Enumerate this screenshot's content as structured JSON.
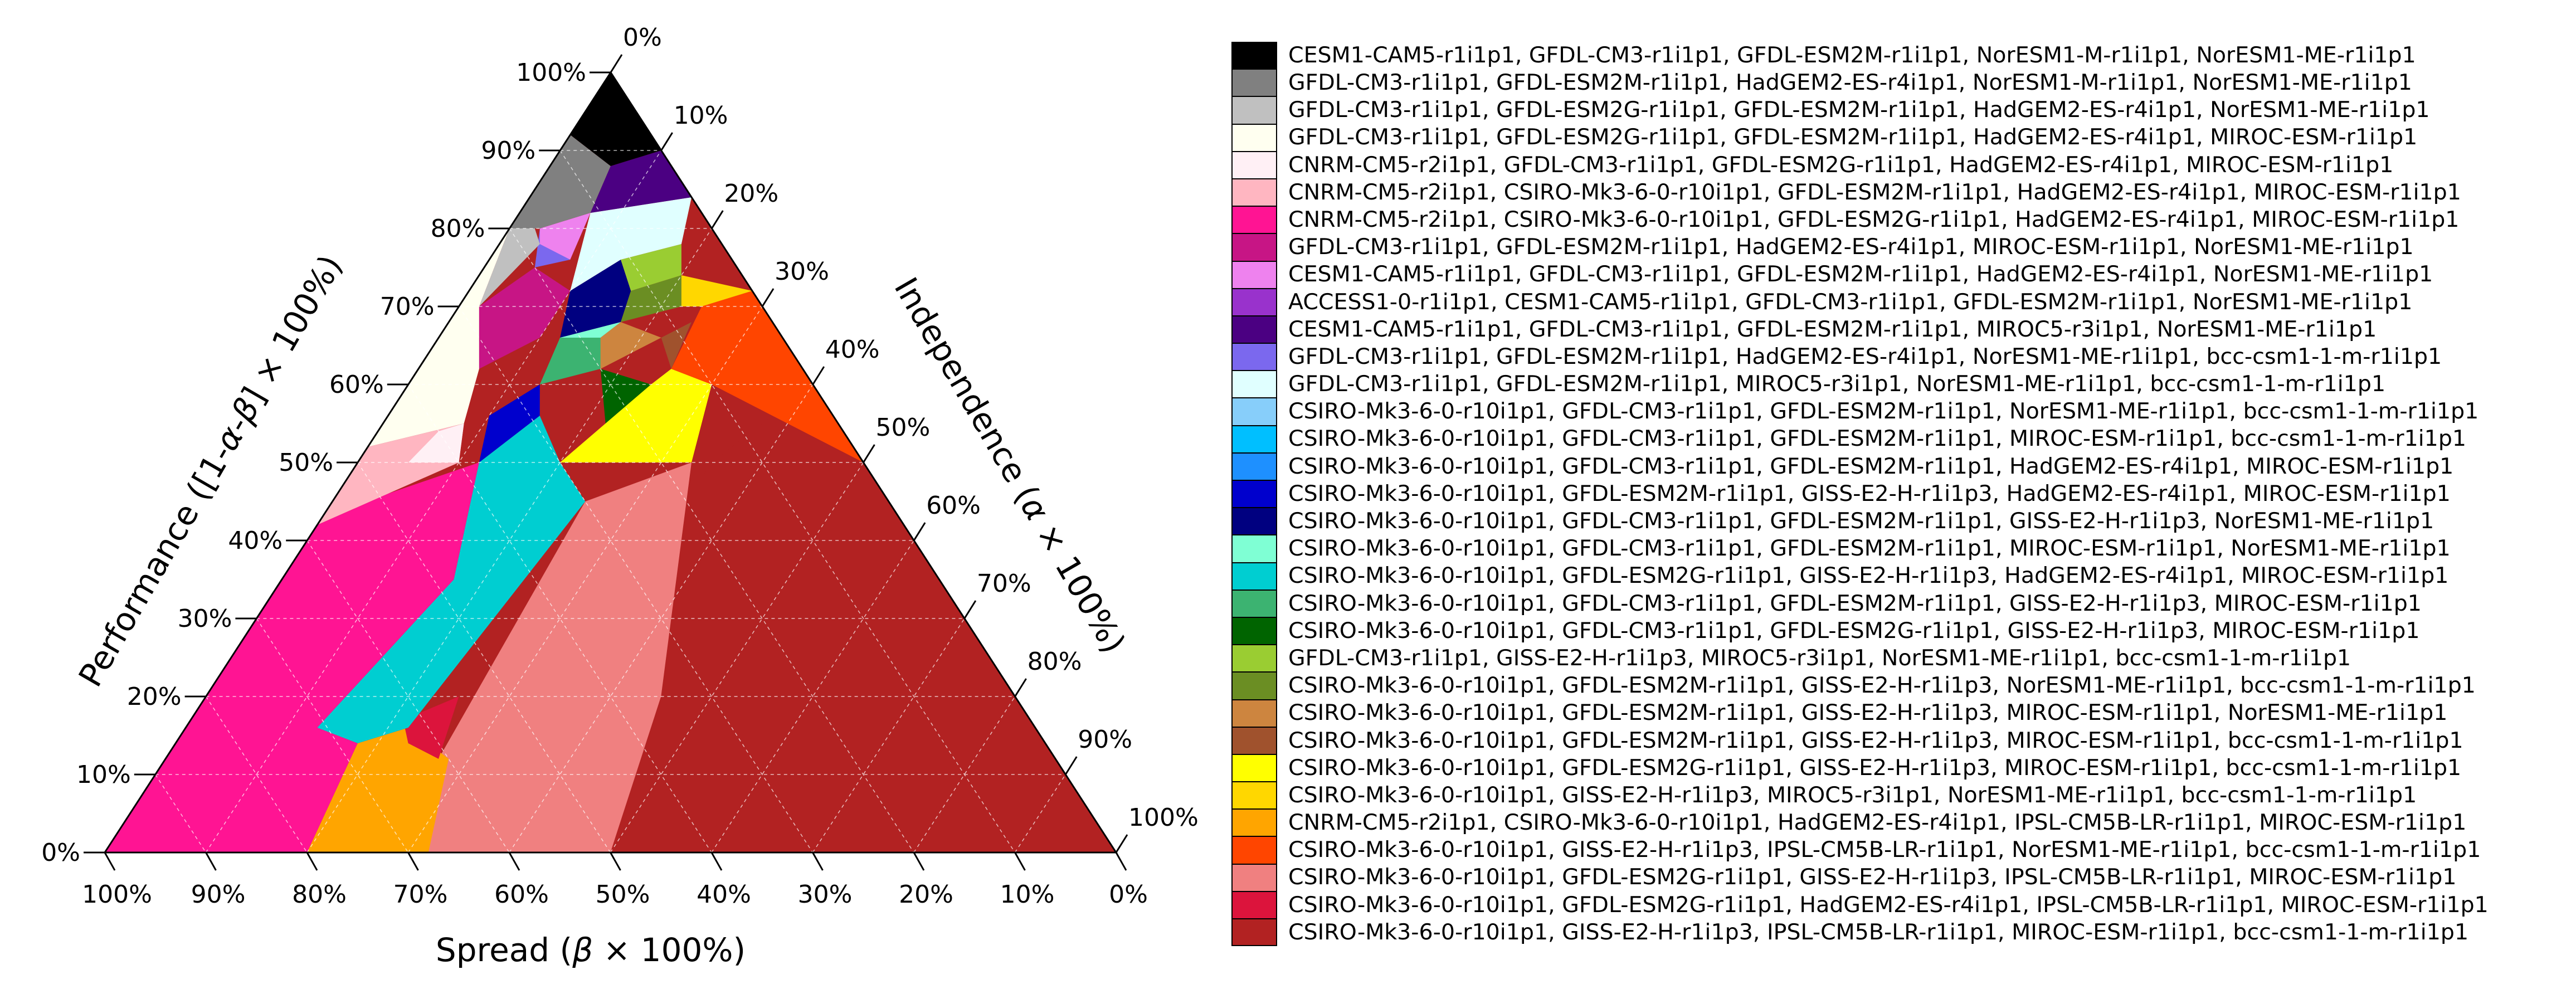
{
  "chart_data": {
    "type": "ternary-region-map",
    "axes": {
      "bottom": {
        "label_parts": [
          "Spread  (",
          "β",
          " × 100%)"
        ],
        "ticks": [
          "100%",
          "90%",
          "80%",
          "70%",
          "60%",
          "50%",
          "40%",
          "30%",
          "20%",
          "10%",
          "0%"
        ]
      },
      "left": {
        "label_parts": [
          "Performance ([1-",
          "α",
          "-",
          "β",
          "] × 100%)"
        ],
        "ticks": [
          "0%",
          "10%",
          "20%",
          "30%",
          "40%",
          "50%",
          "60%",
          "70%",
          "80%",
          "90%",
          "100%"
        ]
      },
      "right": {
        "label_parts": [
          "Independence (",
          "α",
          " × 100%)"
        ],
        "ticks": [
          "0%",
          "10%",
          "20%",
          "30%",
          "40%",
          "50%",
          "60%",
          "70%",
          "80%",
          "90%",
          "100%"
        ]
      }
    },
    "grid": true,
    "legend_position": "right",
    "regions": [
      {
        "idx": 0,
        "poly": [
          [
            0.91,
            0.06
          ],
          [
            0.97,
            0.0
          ],
          [
            1.0,
            0.0
          ],
          [
            0.9,
            0.1
          ],
          [
            0.84,
            0.1
          ],
          [
            0.87,
            0.06
          ]
        ]
      },
      {
        "idx": 1,
        "poly": [
          [
            0.87,
            0.06
          ],
          [
            0.84,
            0.1
          ],
          [
            0.8,
            0.1
          ],
          [
            0.77,
            0.08
          ],
          [
            0.83,
            0.02
          ],
          [
            0.88,
            0.02
          ]
        ]
      },
      {
        "idx": 2,
        "poly": [
          [
            0.82,
            0.02
          ],
          [
            0.77,
            0.08
          ],
          [
            0.76,
            0.07
          ],
          [
            0.79,
            0.02
          ]
        ]
      },
      {
        "idx": 3,
        "poly": [
          [
            0.82,
            0.01
          ],
          [
            0.79,
            0.02
          ],
          [
            0.75,
            0.02
          ],
          [
            0.7,
            0.06
          ],
          [
            0.56,
            0.06
          ],
          [
            0.48,
            0.1
          ],
          [
            0.47,
            0.13
          ],
          [
            0.79,
            0.0
          ]
        ]
      },
      {
        "idx": 4,
        "poly": [
          [
            0.5,
            0.09
          ],
          [
            0.56,
            0.06
          ],
          [
            0.59,
            0.06
          ],
          [
            0.54,
            0.17
          ],
          [
            0.49,
            0.16
          ]
        ]
      },
      {
        "idx": 5,
        "poly": [
          [
            0.49,
            0.16
          ],
          [
            0.54,
            0.17
          ],
          [
            0.59,
            0.06
          ],
          [
            0.49,
            0.09
          ],
          [
            0.45,
            0.13
          ],
          [
            0.45,
            0.2
          ]
        ]
      },
      {
        "idx": 6,
        "poly": [
          [
            0.0,
            0.0
          ],
          [
            0.44,
            0.0
          ],
          [
            0.47,
            0.09
          ],
          [
            0.46,
            0.24
          ],
          [
            0.45,
            0.18
          ],
          [
            0.45,
            0.13
          ],
          [
            0.42,
            0.25
          ],
          [
            0.28,
            0.25
          ],
          [
            0.0,
            0.65
          ]
        ]
      },
      {
        "idx": 7,
        "poly": [
          [
            0.81,
            0.08
          ],
          [
            0.72,
            0.1
          ],
          [
            0.7,
            0.15
          ],
          [
            0.76,
            0.2
          ],
          [
            0.79,
            0.12
          ]
        ]
      },
      {
        "idx": 8,
        "poly": [
          [
            0.88,
            0.1
          ],
          [
            0.85,
            0.1
          ],
          [
            0.83,
            0.13
          ],
          [
            0.87,
            0.13
          ]
        ]
      },
      {
        "idx": 9,
        "poly": [
          [
            0.87,
            0.12
          ],
          [
            0.83,
            0.13
          ],
          [
            0.84,
            0.17
          ],
          [
            0.85,
            0.17
          ]
        ]
      },
      {
        "idx": 10,
        "poly": [
          [
            0.94,
            0.06
          ],
          [
            0.89,
            0.1
          ],
          [
            0.91,
            0.11
          ],
          [
            0.96,
            0.06
          ]
        ]
      },
      {
        "idx": 11,
        "poly": [
          [
            0.85,
            0.15
          ],
          [
            0.8,
            0.14
          ],
          [
            0.78,
            0.18
          ],
          [
            0.81,
            0.2
          ]
        ]
      },
      {
        "idx": 12,
        "poly": [
          [
            0.88,
            0.1
          ],
          [
            0.91,
            0.11
          ],
          [
            0.85,
            0.26
          ],
          [
            0.79,
            0.23
          ],
          [
            0.8,
            0.21
          ],
          [
            0.83,
            0.18
          ]
        ]
      },
      {
        "idx": 13,
        "poly": [
          [
            0.0,
            0.0
          ],
          [
            0.0,
            0.0
          ],
          [
            0.0,
            0.0
          ]
        ]
      },
      {
        "idx": 14,
        "poly": [
          [
            0.0,
            0.0
          ],
          [
            0.0,
            0.0
          ],
          [
            0.0,
            0.0
          ]
        ]
      },
      {
        "idx": 15,
        "poly": [
          [
            0.0,
            0.0
          ],
          [
            0.0,
            0.0
          ],
          [
            0.0,
            0.0
          ]
        ]
      },
      {
        "idx": 16,
        "poly": [
          [
            0.59,
            0.14
          ],
          [
            0.64,
            0.15
          ],
          [
            0.66,
            0.21
          ],
          [
            0.6,
            0.28
          ],
          [
            0.51,
            0.16
          ]
        ]
      },
      {
        "idx": 17,
        "poly": [
          [
            0.8,
            0.2
          ],
          [
            0.75,
            0.23
          ],
          [
            0.7,
            0.24
          ],
          [
            0.72,
            0.3
          ],
          [
            0.76,
            0.29
          ],
          [
            0.79,
            0.25
          ]
        ]
      },
      {
        "idx": 18,
        "poly": [
          [
            0.72,
            0.24
          ],
          [
            0.7,
            0.24
          ],
          [
            0.69,
            0.26
          ],
          [
            0.71,
            0.28
          ]
        ]
      },
      {
        "idx": 19,
        "poly": [
          [
            0.59,
            0.14
          ],
          [
            0.51,
            0.16
          ],
          [
            0.32,
            0.06
          ],
          [
            0.15,
            0.14
          ],
          [
            0.15,
            0.27
          ],
          [
            0.37,
            0.27
          ],
          [
            0.55,
            0.3
          ],
          [
            0.63,
            0.29
          ],
          [
            0.66,
            0.21
          ],
          [
            0.64,
            0.15
          ]
        ]
      },
      {
        "idx": 20,
        "poly": [
          [
            0.64,
            0.15
          ],
          [
            0.7,
            0.15
          ],
          [
            0.75,
            0.23
          ],
          [
            0.7,
            0.25
          ],
          [
            0.66,
            0.21
          ]
        ]
      },
      {
        "idx": 21,
        "poly": [
          [
            0.6,
            0.28
          ],
          [
            0.66,
            0.21
          ],
          [
            0.7,
            0.25
          ],
          [
            0.64,
            0.3
          ]
        ]
      },
      {
        "idx": 22,
        "poly": [
          [
            0.83,
            0.21
          ],
          [
            0.87,
            0.23
          ],
          [
            0.85,
            0.26
          ],
          [
            0.81,
            0.25
          ]
        ]
      },
      {
        "idx": 23,
        "poly": [
          [
            0.8,
            0.21
          ],
          [
            0.81,
            0.25
          ],
          [
            0.76,
            0.29
          ],
          [
            0.74,
            0.24
          ]
        ]
      },
      {
        "idx": 24,
        "poly": [
          [
            0.74,
            0.24
          ],
          [
            0.7,
            0.25
          ],
          [
            0.7,
            0.3
          ],
          [
            0.71,
            0.31
          ]
        ]
      },
      {
        "idx": 25,
        "poly": [
          [
            0.7,
            0.25
          ],
          [
            0.69,
            0.26
          ],
          [
            0.7,
            0.32
          ],
          [
            0.71,
            0.31
          ],
          [
            0.72,
            0.29
          ]
        ]
      },
      {
        "idx": 26,
        "poly": [
          [
            0.69,
            0.26
          ],
          [
            0.55,
            0.3
          ],
          [
            0.56,
            0.37
          ],
          [
            0.65,
            0.33
          ],
          [
            0.7,
            0.32
          ]
        ]
      },
      {
        "idx": 27,
        "poly": [
          [
            0.81,
            0.25
          ],
          [
            0.85,
            0.26
          ],
          [
            0.83,
            0.3
          ],
          [
            0.79,
            0.29
          ]
        ]
      },
      {
        "idx": 28,
        "poly": [
          [
            0.13,
            0.14
          ],
          [
            0.32,
            0.06
          ],
          [
            0.23,
            0.0
          ],
          [
            0.14,
            0.0
          ],
          [
            0.13,
            0.04
          ]
        ]
      },
      {
        "idx": 29,
        "poly": [
          [
            0.79,
            0.29
          ],
          [
            0.83,
            0.3
          ],
          [
            0.79,
            0.4
          ],
          [
            0.72,
            0.3
          ]
        ]
      },
      {
        "idx": 30,
        "poly": [
          [
            0.55,
            0.3
          ],
          [
            0.37,
            0.27
          ],
          [
            0.15,
            0.27
          ],
          [
            0.15,
            0.14
          ],
          [
            0.0,
            0.45
          ],
          [
            0.0,
            0.51
          ],
          [
            0.12,
            0.56
          ],
          [
            0.45,
            0.55
          ],
          [
            0.56,
            0.37
          ]
        ]
      },
      {
        "idx": 31,
        "poly": [
          [
            0.16,
            0.27
          ],
          [
            0.17,
            0.22
          ],
          [
            0.14,
            0.23
          ],
          [
            0.13,
            0.3
          ]
        ]
      },
      {
        "idx": 32,
        "poly": [
          [
            0.72,
            0.3
          ],
          [
            0.79,
            0.4
          ],
          [
            0.65,
            0.33
          ],
          [
            0.56,
            0.37
          ],
          [
            0.45,
            0.55
          ],
          [
            0.12,
            0.56
          ],
          [
            0.0,
            0.51
          ],
          [
            0.0,
            1.0
          ],
          [
            0.0,
            0.0
          ]
        ]
      }
    ],
    "series": [
      {
        "name": "CESM1-CAM5-r1i1p1, GFDL-CM3-r1i1p1, GFDL-ESM2M-r1i1p1, NorESM1-M-r1i1p1, NorESM1-ME-r1i1p1",
        "color": "#000000"
      },
      {
        "name": "GFDL-CM3-r1i1p1, GFDL-ESM2M-r1i1p1, HadGEM2-ES-r4i1p1, NorESM1-M-r1i1p1, NorESM1-ME-r1i1p1",
        "color": "#808080"
      },
      {
        "name": "GFDL-CM3-r1i1p1, GFDL-ESM2G-r1i1p1, GFDL-ESM2M-r1i1p1, HadGEM2-ES-r4i1p1, NorESM1-ME-r1i1p1",
        "color": "#c0c0c0"
      },
      {
        "name": "GFDL-CM3-r1i1p1, GFDL-ESM2G-r1i1p1, GFDL-ESM2M-r1i1p1, HadGEM2-ES-r4i1p1, MIROC-ESM-r1i1p1",
        "color": "#fffff0"
      },
      {
        "name": "CNRM-CM5-r2i1p1, GFDL-CM3-r1i1p1, GFDL-ESM2G-r1i1p1, HadGEM2-ES-r4i1p1, MIROC-ESM-r1i1p1",
        "color": "#fff0f5"
      },
      {
        "name": "CNRM-CM5-r2i1p1, CSIRO-Mk3-6-0-r10i1p1, GFDL-ESM2M-r1i1p1, HadGEM2-ES-r4i1p1, MIROC-ESM-r1i1p1",
        "color": "#ffb6c1"
      },
      {
        "name": "CNRM-CM5-r2i1p1, CSIRO-Mk3-6-0-r10i1p1, GFDL-ESM2G-r1i1p1, HadGEM2-ES-r4i1p1, MIROC-ESM-r1i1p1",
        "color": "#ff1493"
      },
      {
        "name": "GFDL-CM3-r1i1p1, GFDL-ESM2M-r1i1p1, HadGEM2-ES-r4i1p1, MIROC-ESM-r1i1p1, NorESM1-ME-r1i1p1",
        "color": "#c71585"
      },
      {
        "name": "CESM1-CAM5-r1i1p1, GFDL-CM3-r1i1p1, GFDL-ESM2M-r1i1p1, HadGEM2-ES-r4i1p1, NorESM1-ME-r1i1p1",
        "color": "#ee82ee"
      },
      {
        "name": "ACCESS1-0-r1i1p1, CESM1-CAM5-r1i1p1, GFDL-CM3-r1i1p1, GFDL-ESM2M-r1i1p1, NorESM1-ME-r1i1p1",
        "color": "#9932cc"
      },
      {
        "name": "CESM1-CAM5-r1i1p1, GFDL-CM3-r1i1p1, GFDL-ESM2M-r1i1p1, MIROC5-r3i1p1, NorESM1-ME-r1i1p1",
        "color": "#4b0082"
      },
      {
        "name": "GFDL-CM3-r1i1p1, GFDL-ESM2M-r1i1p1, HadGEM2-ES-r4i1p1, NorESM1-ME-r1i1p1, bcc-csm1-1-m-r1i1p1",
        "color": "#7b68ee"
      },
      {
        "name": "GFDL-CM3-r1i1p1, GFDL-ESM2M-r1i1p1, MIROC5-r3i1p1, NorESM1-ME-r1i1p1, bcc-csm1-1-m-r1i1p1",
        "color": "#e0ffff"
      },
      {
        "name": "CSIRO-Mk3-6-0-r10i1p1, GFDL-CM3-r1i1p1, GFDL-ESM2M-r1i1p1, NorESM1-ME-r1i1p1, bcc-csm1-1-m-r1i1p1",
        "color": "#87cefa"
      },
      {
        "name": "CSIRO-Mk3-6-0-r10i1p1, GFDL-CM3-r1i1p1, GFDL-ESM2M-r1i1p1, MIROC-ESM-r1i1p1, bcc-csm1-1-m-r1i1p1",
        "color": "#00bfff"
      },
      {
        "name": "CSIRO-Mk3-6-0-r10i1p1, GFDL-CM3-r1i1p1, GFDL-ESM2M-r1i1p1, HadGEM2-ES-r4i1p1, MIROC-ESM-r1i1p1",
        "color": "#1e90ff"
      },
      {
        "name": "CSIRO-Mk3-6-0-r10i1p1, GFDL-ESM2M-r1i1p1, GISS-E2-H-r1i1p3, HadGEM2-ES-r4i1p1, MIROC-ESM-r1i1p1",
        "color": "#0000cd"
      },
      {
        "name": "CSIRO-Mk3-6-0-r10i1p1, GFDL-CM3-r1i1p1, GFDL-ESM2M-r1i1p1, GISS-E2-H-r1i1p3, NorESM1-ME-r1i1p1",
        "color": "#000080"
      },
      {
        "name": "CSIRO-Mk3-6-0-r10i1p1, GFDL-CM3-r1i1p1, GFDL-ESM2M-r1i1p1, MIROC-ESM-r1i1p1, NorESM1-ME-r1i1p1",
        "color": "#7fffd4"
      },
      {
        "name": "CSIRO-Mk3-6-0-r10i1p1, GFDL-ESM2G-r1i1p1, GISS-E2-H-r1i1p3, HadGEM2-ES-r4i1p1, MIROC-ESM-r1i1p1",
        "color": "#00ced1"
      },
      {
        "name": "CSIRO-Mk3-6-0-r10i1p1, GFDL-CM3-r1i1p1, GFDL-ESM2M-r1i1p1, GISS-E2-H-r1i1p3, MIROC-ESM-r1i1p1",
        "color": "#3cb371"
      },
      {
        "name": "CSIRO-Mk3-6-0-r10i1p1, GFDL-CM3-r1i1p1, GFDL-ESM2G-r1i1p1, GISS-E2-H-r1i1p3, MIROC-ESM-r1i1p1",
        "color": "#006400"
      },
      {
        "name": "GFDL-CM3-r1i1p1, GISS-E2-H-r1i1p3, MIROC5-r3i1p1, NorESM1-ME-r1i1p1, bcc-csm1-1-m-r1i1p1",
        "color": "#9acd32"
      },
      {
        "name": "CSIRO-Mk3-6-0-r10i1p1, GFDL-ESM2M-r1i1p1, GISS-E2-H-r1i1p3, NorESM1-ME-r1i1p1, bcc-csm1-1-m-r1i1p1",
        "color": "#6b8e23"
      },
      {
        "name": "CSIRO-Mk3-6-0-r10i1p1, GFDL-ESM2M-r1i1p1, GISS-E2-H-r1i1p3, MIROC-ESM-r1i1p1, NorESM1-ME-r1i1p1",
        "color": "#cd853f"
      },
      {
        "name": "CSIRO-Mk3-6-0-r10i1p1, GFDL-ESM2M-r1i1p1, GISS-E2-H-r1i1p3, MIROC-ESM-r1i1p1, bcc-csm1-1-m-r1i1p1",
        "color": "#a0522d"
      },
      {
        "name": "CSIRO-Mk3-6-0-r10i1p1, GFDL-ESM2G-r1i1p1, GISS-E2-H-r1i1p3, MIROC-ESM-r1i1p1, bcc-csm1-1-m-r1i1p1",
        "color": "#ffff00"
      },
      {
        "name": "CSIRO-Mk3-6-0-r10i1p1, GISS-E2-H-r1i1p3, MIROC5-r3i1p1, NorESM1-ME-r1i1p1, bcc-csm1-1-m-r1i1p1",
        "color": "#ffd700"
      },
      {
        "name": "CNRM-CM5-r2i1p1, CSIRO-Mk3-6-0-r10i1p1, HadGEM2-ES-r4i1p1, IPSL-CM5B-LR-r1i1p1, MIROC-ESM-r1i1p1",
        "color": "#ffa500"
      },
      {
        "name": "CSIRO-Mk3-6-0-r10i1p1, GISS-E2-H-r1i1p3, IPSL-CM5B-LR-r1i1p1, NorESM1-ME-r1i1p1, bcc-csm1-1-m-r1i1p1",
        "color": "#ff4500"
      },
      {
        "name": "CSIRO-Mk3-6-0-r10i1p1, GFDL-ESM2G-r1i1p1, GISS-E2-H-r1i1p3, IPSL-CM5B-LR-r1i1p1, MIROC-ESM-r1i1p1",
        "color": "#f08080"
      },
      {
        "name": "CSIRO-Mk3-6-0-r10i1p1, GFDL-ESM2G-r1i1p1, HadGEM2-ES-r4i1p1, IPSL-CM5B-LR-r1i1p1, MIROC-ESM-r1i1p1",
        "color": "#dc143c"
      },
      {
        "name": "CSIRO-Mk3-6-0-r10i1p1, GISS-E2-H-r1i1p3, IPSL-CM5B-LR-r1i1p1, MIROC-ESM-r1i1p1, bcc-csm1-1-m-r1i1p1",
        "color": "#b22222"
      }
    ]
  }
}
